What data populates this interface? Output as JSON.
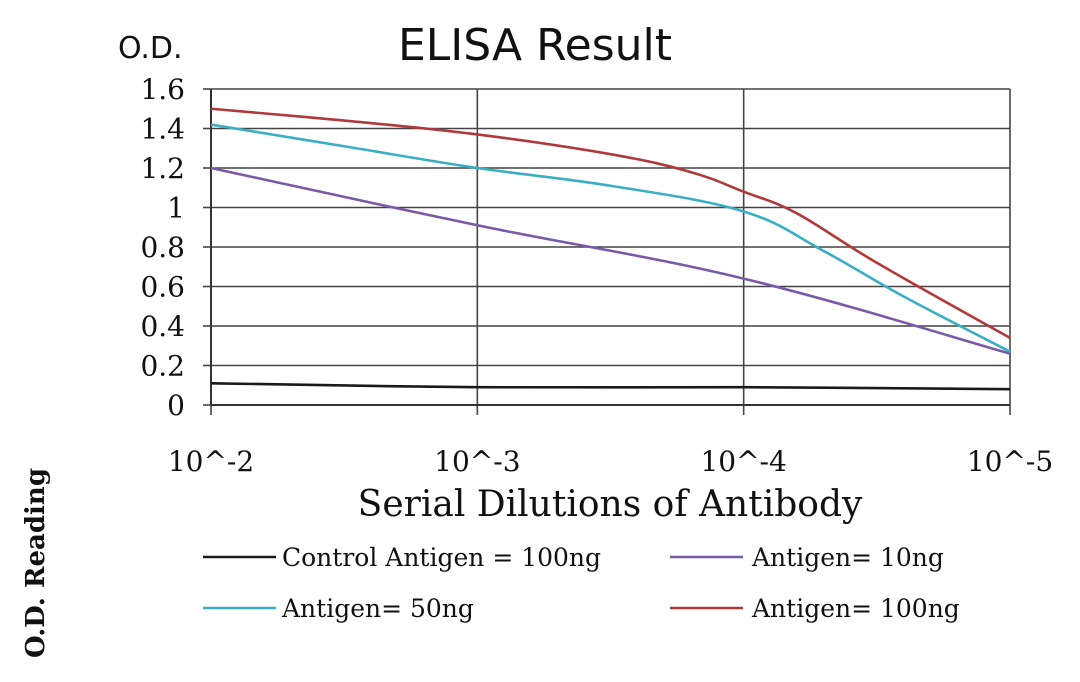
{
  "chart_data": {
    "type": "line",
    "title": "ELISA Result",
    "ylabel_top": "O.D.",
    "ylabel_side": "O.D. Reading",
    "xlabel": "Serial Dilutions of Antibody",
    "ylim": [
      0,
      1.6
    ],
    "y_ticks": [
      "0",
      "0.2",
      "0.4",
      "0.6",
      "0.8",
      "1",
      "1.2",
      "1.4",
      "1.6"
    ],
    "categories": [
      "10^-2",
      "10^-3",
      "10^-4",
      "10^-5"
    ],
    "grid": true,
    "legend_placement": "bottom",
    "series": [
      {
        "name": "Control Antigen = 100ng",
        "color": "#1a1a1a",
        "x": [
          0,
          1,
          2,
          3
        ],
        "values": [
          0.11,
          0.09,
          0.09,
          0.08
        ]
      },
      {
        "name": "Antigen= 10ng",
        "color": "#7a5aa8",
        "x": [
          0,
          1,
          2,
          3
        ],
        "values": [
          1.2,
          0.91,
          0.64,
          0.26
        ]
      },
      {
        "name": "Antigen= 50ng",
        "color": "#3aaec4",
        "x": [
          0,
          0.5,
          1,
          1.5,
          2,
          2.3,
          2.6,
          3
        ],
        "values": [
          1.42,
          1.31,
          1.2,
          1.11,
          0.98,
          0.78,
          0.55,
          0.27
        ]
      },
      {
        "name": "Antigen= 100ng",
        "color": "#b03a3a",
        "x": [
          0,
          0.5,
          1,
          1.5,
          1.8,
          2,
          2.2,
          2.5,
          3
        ],
        "values": [
          1.5,
          1.44,
          1.37,
          1.27,
          1.18,
          1.08,
          0.97,
          0.72,
          0.34
        ]
      }
    ]
  }
}
